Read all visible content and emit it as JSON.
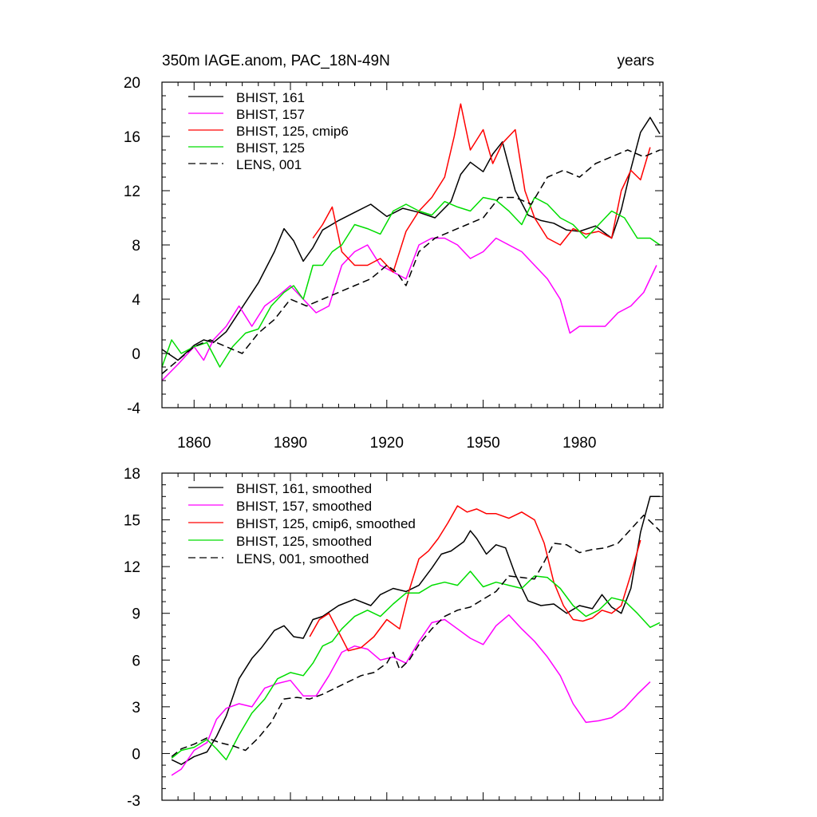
{
  "chart_data": [
    {
      "type": "line",
      "title": "350m IAGE.anom, PAC_18N-49N",
      "units_label": "years",
      "xlim": [
        1850,
        2006
      ],
      "ylim": [
        -4,
        20
      ],
      "xticks": [
        1860,
        1890,
        1920,
        1950,
        1980
      ],
      "xtick_labels": [
        "1860",
        "1890",
        "1920",
        "1950",
        "1980"
      ],
      "yticks": [
        -4,
        0,
        4,
        8,
        12,
        16,
        20
      ],
      "ytick_labels": [
        "-4",
        "0",
        "4",
        "8",
        "12",
        "16",
        "20"
      ],
      "legend_position": "top-left",
      "series": [
        {
          "name": "BHIST, 161",
          "color": "#000000",
          "dashed": false,
          "x": [
            1850,
            1855,
            1860,
            1863,
            1866,
            1870,
            1875,
            1880,
            1885,
            1888,
            1891,
            1894,
            1897,
            1900,
            1905,
            1910,
            1915,
            1920,
            1925,
            1930,
            1935,
            1940,
            1943,
            1946,
            1950,
            1953,
            1956,
            1960,
            1964,
            1968,
            1972,
            1976,
            1980,
            1985,
            1990,
            1993,
            1996,
            1999,
            2002,
            2005
          ],
          "y": [
            0.3,
            -0.5,
            0.6,
            1.0,
            0.8,
            1.6,
            3.4,
            5.2,
            7.5,
            9.2,
            8.3,
            6.8,
            7.8,
            9.1,
            9.8,
            10.4,
            11.0,
            10.1,
            10.7,
            10.4,
            10.0,
            11.2,
            13.2,
            14.1,
            13.4,
            14.7,
            15.6,
            12.0,
            10.2,
            9.8,
            9.6,
            9.1,
            9.0,
            9.4,
            8.5,
            10.6,
            13.6,
            16.3,
            17.4,
            16.2
          ]
        },
        {
          "name": "BHIST, 157",
          "color": "#ff00ff",
          "dashed": false,
          "x": [
            1850,
            1855,
            1860,
            1863,
            1866,
            1870,
            1874,
            1878,
            1882,
            1886,
            1890,
            1894,
            1898,
            1902,
            1906,
            1910,
            1914,
            1918,
            1922,
            1926,
            1930,
            1934,
            1938,
            1942,
            1946,
            1950,
            1954,
            1958,
            1962,
            1966,
            1970,
            1974,
            1977,
            1980,
            1984,
            1988,
            1992,
            1996,
            2000,
            2004
          ],
          "y": [
            -2.0,
            -0.8,
            0.5,
            -0.5,
            1.0,
            2.0,
            3.5,
            2.0,
            3.5,
            4.2,
            5.0,
            4.0,
            3.0,
            3.5,
            6.5,
            7.5,
            8.0,
            6.5,
            6.0,
            5.5,
            8.0,
            8.5,
            8.5,
            8.0,
            7.0,
            7.5,
            8.5,
            8.0,
            7.5,
            6.5,
            5.5,
            4.0,
            1.5,
            2.0,
            2.0,
            2.0,
            3.0,
            3.5,
            4.5,
            6.5
          ]
        },
        {
          "name": "BHIST, 125, cmip6",
          "color": "#ff0000",
          "dashed": false,
          "x": [
            1897,
            1900,
            1903,
            1906,
            1910,
            1914,
            1918,
            1922,
            1926,
            1930,
            1934,
            1938,
            1941,
            1943,
            1946,
            1950,
            1953,
            1956,
            1960,
            1963,
            1966,
            1970,
            1974,
            1978,
            1982,
            1986,
            1990,
            1993,
            1996,
            1999,
            2002
          ],
          "y": [
            8.5,
            9.5,
            10.8,
            7.5,
            6.5,
            6.5,
            7.0,
            6.0,
            9.0,
            10.5,
            11.5,
            13.0,
            16.0,
            18.4,
            15.0,
            16.5,
            14.0,
            15.5,
            16.5,
            12.0,
            10.0,
            8.5,
            8.0,
            9.2,
            8.8,
            9.0,
            8.5,
            12.0,
            13.5,
            12.8,
            15.2
          ]
        },
        {
          "name": "BHIST, 125",
          "color": "#00dd00",
          "dashed": false,
          "x": [
            1850,
            1853,
            1856,
            1860,
            1864,
            1868,
            1872,
            1876,
            1880,
            1884,
            1888,
            1891,
            1894,
            1897,
            1900,
            1903,
            1906,
            1910,
            1914,
            1918,
            1922,
            1926,
            1930,
            1934,
            1938,
            1942,
            1946,
            1950,
            1954,
            1958,
            1962,
            1966,
            1970,
            1974,
            1978,
            1982,
            1986,
            1990,
            1994,
            1998,
            2002,
            2005
          ],
          "y": [
            -1.0,
            1.0,
            0.0,
            0.5,
            0.8,
            -1.0,
            0.5,
            1.5,
            1.8,
            3.5,
            4.5,
            5.0,
            4.0,
            6.5,
            6.5,
            7.5,
            8.0,
            9.5,
            9.2,
            8.8,
            10.5,
            11.0,
            10.5,
            10.2,
            11.2,
            10.8,
            10.5,
            11.5,
            11.3,
            10.5,
            9.5,
            11.5,
            11.0,
            10.0,
            9.5,
            8.5,
            9.5,
            10.5,
            10.0,
            8.5,
            8.5,
            8.0
          ]
        },
        {
          "name": "LENS, 001",
          "color": "#000000",
          "dashed": true,
          "x": [
            1850,
            1855,
            1860,
            1865,
            1870,
            1875,
            1880,
            1885,
            1890,
            1895,
            1900,
            1905,
            1910,
            1915,
            1920,
            1923,
            1926,
            1930,
            1935,
            1940,
            1945,
            1950,
            1955,
            1960,
            1965,
            1970,
            1975,
            1980,
            1985,
            1990,
            1995,
            2000,
            2005
          ],
          "y": [
            -1.5,
            -0.5,
            0.5,
            1.0,
            0.5,
            0.0,
            1.5,
            2.5,
            4.0,
            3.5,
            4.0,
            4.5,
            5.0,
            5.5,
            6.5,
            6.0,
            5.0,
            7.5,
            8.5,
            9.0,
            9.5,
            10.0,
            11.5,
            11.5,
            11.0,
            13.0,
            13.5,
            13.0,
            14.0,
            14.5,
            15.0,
            14.5,
            15.0
          ]
        }
      ]
    },
    {
      "type": "line",
      "xlim": [
        1850,
        2006
      ],
      "ylim": [
        -3,
        18
      ],
      "xticks": [
        1860,
        1890,
        1920,
        1950,
        1980
      ],
      "yticks": [
        -3,
        0,
        3,
        6,
        9,
        12,
        15,
        18
      ],
      "ytick_labels": [
        "-3",
        "0",
        "3",
        "6",
        "9",
        "12",
        "15",
        "18"
      ],
      "legend_position": "top-left",
      "series": [
        {
          "name": "BHIST, 161, smoothed",
          "color": "#000000",
          "dashed": false,
          "x": [
            1853,
            1856,
            1860,
            1864,
            1867,
            1870,
            1874,
            1878,
            1881,
            1885,
            1888,
            1891,
            1894,
            1897,
            1900,
            1905,
            1910,
            1915,
            1918,
            1922,
            1926,
            1930,
            1934,
            1937,
            1940,
            1944,
            1946,
            1948,
            1951,
            1954,
            1957,
            1960,
            1964,
            1968,
            1972,
            1976,
            1980,
            1984,
            1987,
            1990,
            1993,
            1996,
            1999,
            2002,
            2005
          ],
          "y": [
            -0.4,
            -0.7,
            -0.2,
            0.1,
            1.1,
            2.4,
            4.8,
            6.1,
            6.8,
            7.9,
            8.2,
            7.5,
            7.4,
            8.6,
            8.8,
            9.5,
            9.9,
            9.5,
            10.2,
            10.6,
            10.4,
            10.8,
            11.9,
            12.8,
            13.0,
            13.6,
            14.3,
            13.8,
            12.8,
            13.4,
            13.2,
            11.5,
            9.8,
            9.5,
            9.6,
            9.0,
            9.5,
            9.3,
            10.2,
            9.4,
            9.0,
            10.6,
            14.2,
            16.5,
            16.5
          ]
        },
        {
          "name": "BHIST, 157, smoothed",
          "color": "#ff00ff",
          "dashed": false,
          "x": [
            1853,
            1856,
            1860,
            1864,
            1867,
            1870,
            1874,
            1878,
            1882,
            1886,
            1890,
            1894,
            1898,
            1902,
            1906,
            1910,
            1914,
            1918,
            1922,
            1926,
            1930,
            1934,
            1938,
            1942,
            1946,
            1950,
            1954,
            1958,
            1962,
            1966,
            1970,
            1974,
            1978,
            1982,
            1986,
            1990,
            1994,
            1998,
            2002
          ],
          "y": [
            -1.4,
            -1.0,
            0.2,
            0.7,
            2.2,
            2.9,
            3.2,
            3.0,
            4.2,
            4.5,
            4.7,
            3.7,
            3.7,
            5.0,
            6.5,
            6.9,
            6.7,
            6.0,
            6.2,
            5.8,
            7.2,
            8.4,
            8.6,
            8.0,
            7.4,
            7.0,
            8.2,
            8.9,
            8.0,
            7.2,
            6.2,
            5.0,
            3.2,
            2.0,
            2.1,
            2.3,
            2.9,
            3.8,
            4.6
          ]
        },
        {
          "name": "BHIST, 125, cmip6, smoothed",
          "color": "#ff0000",
          "dashed": false,
          "x": [
            1896,
            1899,
            1902,
            1905,
            1908,
            1912,
            1916,
            1920,
            1924,
            1927,
            1930,
            1933,
            1936,
            1939,
            1942,
            1945,
            1948,
            1951,
            1954,
            1958,
            1962,
            1966,
            1969,
            1972,
            1975,
            1978,
            1981,
            1984,
            1987,
            1990,
            1993,
            1996,
            1999
          ],
          "y": [
            7.5,
            8.6,
            9.0,
            7.8,
            6.6,
            6.8,
            7.5,
            8.6,
            8.0,
            10.5,
            12.5,
            13.0,
            13.8,
            14.8,
            15.9,
            15.5,
            15.7,
            15.4,
            15.4,
            15.1,
            15.5,
            15.0,
            13.5,
            11.0,
            9.5,
            8.6,
            8.5,
            8.7,
            9.2,
            9.0,
            9.5,
            11.5,
            13.7
          ]
        },
        {
          "name": "BHIST, 125, smoothed",
          "color": "#00dd00",
          "dashed": false,
          "x": [
            1853,
            1856,
            1860,
            1864,
            1867,
            1870,
            1874,
            1878,
            1882,
            1886,
            1890,
            1894,
            1897,
            1900,
            1903,
            1906,
            1910,
            1914,
            1918,
            1922,
            1926,
            1930,
            1934,
            1938,
            1942,
            1946,
            1950,
            1954,
            1958,
            1962,
            1966,
            1970,
            1974,
            1978,
            1982,
            1986,
            1990,
            1994,
            1998,
            2002,
            2005
          ],
          "y": [
            -0.3,
            0.2,
            0.4,
            0.9,
            0.3,
            -0.4,
            1.2,
            2.6,
            3.5,
            4.8,
            5.2,
            5.0,
            5.8,
            6.9,
            7.2,
            8.0,
            8.8,
            9.2,
            8.8,
            9.6,
            10.3,
            10.3,
            10.8,
            11.0,
            10.8,
            11.7,
            10.7,
            11.0,
            10.8,
            10.6,
            11.4,
            11.3,
            10.6,
            9.5,
            8.8,
            9.2,
            10.0,
            9.8,
            9.0,
            8.1,
            8.4
          ]
        },
        {
          "name": "LENS, 001, smoothed",
          "color": "#000000",
          "dashed": true,
          "x": [
            1853,
            1856,
            1860,
            1864,
            1868,
            1872,
            1876,
            1880,
            1884,
            1888,
            1892,
            1896,
            1900,
            1904,
            1908,
            1912,
            1916,
            1920,
            1922,
            1924,
            1927,
            1930,
            1934,
            1938,
            1942,
            1946,
            1950,
            1954,
            1958,
            1962,
            1966,
            1969,
            1972,
            1976,
            1980,
            1984,
            1988,
            1992,
            1996,
            2000,
            2005
          ],
          "y": [
            -0.2,
            0.3,
            0.6,
            1.0,
            0.7,
            0.5,
            0.2,
            1.0,
            2.0,
            3.5,
            3.6,
            3.5,
            3.8,
            4.2,
            4.6,
            5.0,
            5.2,
            5.8,
            6.5,
            5.4,
            6.0,
            7.0,
            8.0,
            8.8,
            9.2,
            9.4,
            9.9,
            10.4,
            11.4,
            11.3,
            11.2,
            12.3,
            13.5,
            13.4,
            12.9,
            13.1,
            13.2,
            13.5,
            14.4,
            15.3,
            14.3
          ]
        }
      ]
    }
  ]
}
